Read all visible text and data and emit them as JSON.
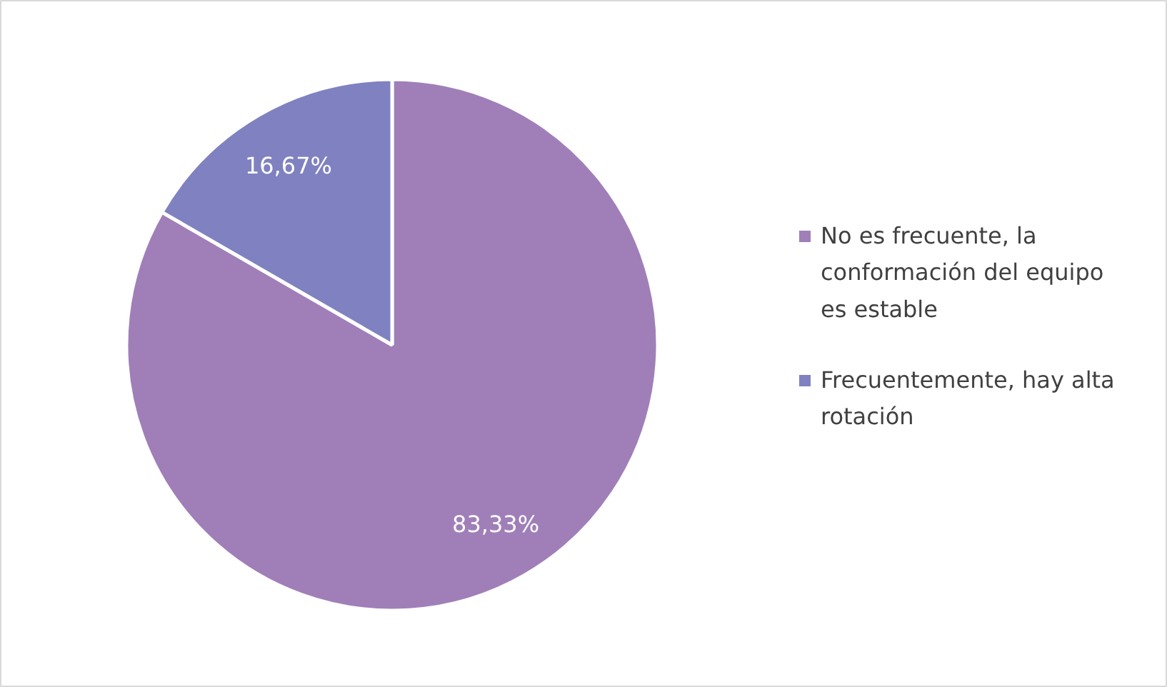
{
  "chart_data": {
    "type": "pie",
    "categories": [
      "No es frecuente, la conformación del equipo es estable",
      "Frecuentemente, hay alta rotación"
    ],
    "values": [
      83.33,
      16.67
    ],
    "colors": [
      "#a07fb8",
      "#7f81c0"
    ],
    "value_labels": [
      "83,33%",
      "16,67%"
    ],
    "legend": "right"
  }
}
